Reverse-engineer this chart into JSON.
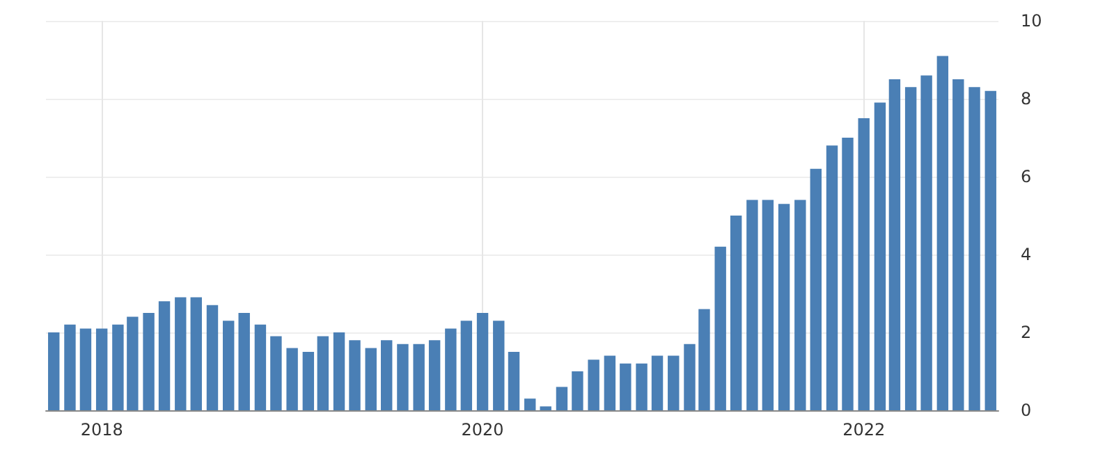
{
  "chart_data": {
    "type": "bar",
    "color": "#4a7fb5",
    "x": [
      "2017-10",
      "2017-11",
      "2017-12",
      "2018-01",
      "2018-02",
      "2018-03",
      "2018-04",
      "2018-05",
      "2018-06",
      "2018-07",
      "2018-08",
      "2018-09",
      "2018-10",
      "2018-11",
      "2018-12",
      "2019-01",
      "2019-02",
      "2019-03",
      "2019-04",
      "2019-05",
      "2019-06",
      "2019-07",
      "2019-08",
      "2019-09",
      "2019-10",
      "2019-11",
      "2019-12",
      "2020-01",
      "2020-02",
      "2020-03",
      "2020-04",
      "2020-05",
      "2020-06",
      "2020-07",
      "2020-08",
      "2020-09",
      "2020-10",
      "2020-11",
      "2020-12",
      "2021-01",
      "2021-02",
      "2021-03",
      "2021-04",
      "2021-05",
      "2021-06",
      "2021-07",
      "2021-08",
      "2021-09",
      "2021-10",
      "2021-11",
      "2021-12",
      "2022-01",
      "2022-02",
      "2022-03",
      "2022-04",
      "2022-05",
      "2022-06",
      "2022-07",
      "2022-08",
      "2022-09"
    ],
    "values": [
      2.0,
      2.2,
      2.1,
      2.1,
      2.2,
      2.4,
      2.5,
      2.8,
      2.9,
      2.9,
      2.7,
      2.3,
      2.5,
      2.2,
      1.9,
      1.6,
      1.5,
      1.9,
      2.0,
      1.8,
      1.6,
      1.8,
      1.7,
      1.7,
      1.8,
      2.1,
      2.3,
      2.5,
      2.3,
      1.5,
      0.3,
      0.1,
      0.6,
      1.0,
      1.3,
      1.4,
      1.2,
      1.2,
      1.4,
      1.4,
      1.7,
      2.6,
      4.2,
      5.0,
      5.4,
      5.4,
      5.3,
      5.4,
      6.2,
      6.8,
      7.0,
      7.5,
      7.9,
      8.5,
      8.3,
      8.6,
      9.1,
      8.5,
      8.3,
      8.2
    ],
    "xlim": [
      "2017-09-16",
      "2022-09-16"
    ],
    "xticks": [
      {
        "value": "2018-01",
        "label": "2018"
      },
      {
        "value": "2020-01",
        "label": "2020"
      },
      {
        "value": "2022-01",
        "label": "2022"
      }
    ],
    "ylim": [
      0,
      10
    ],
    "yticks": [
      0,
      2,
      4,
      6,
      8,
      10
    ],
    "grid": true
  }
}
